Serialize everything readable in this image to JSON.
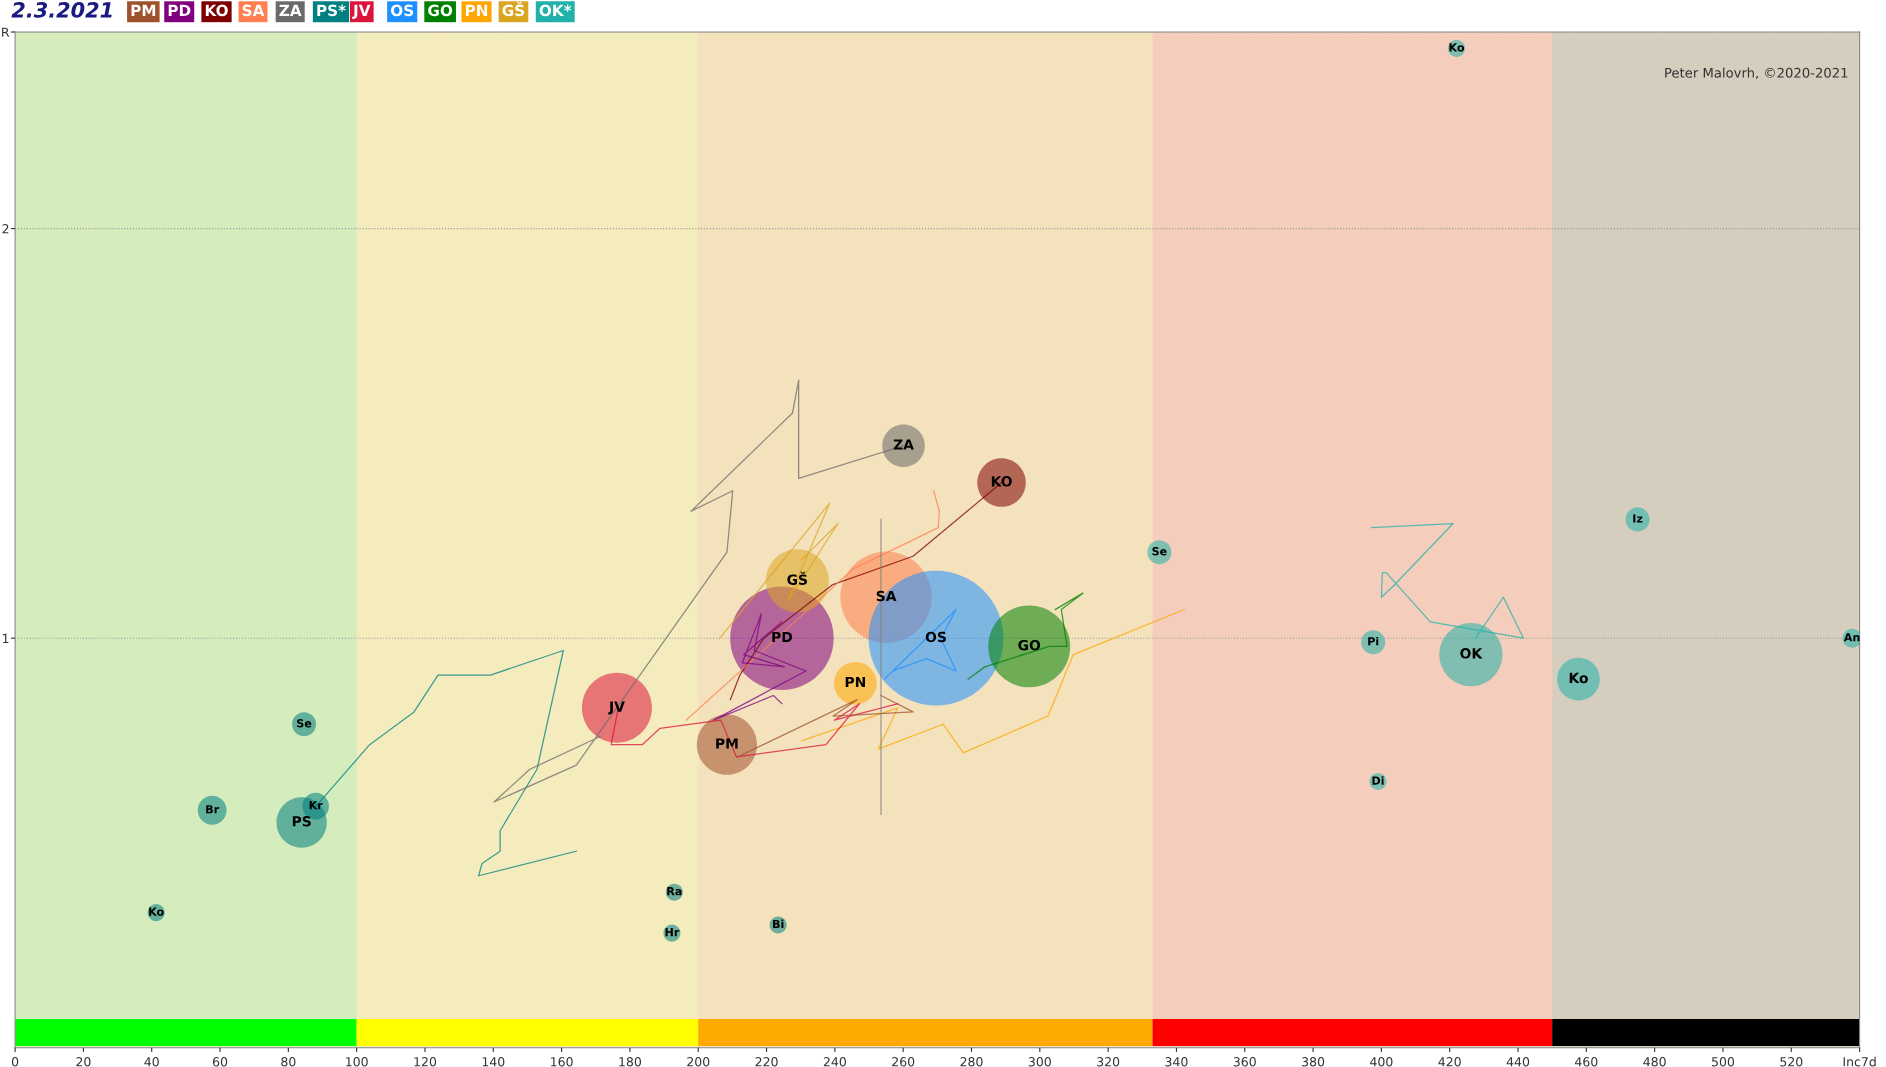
{
  "chart_data": {
    "type": "bubble",
    "title": "2.3.2021",
    "xlim": [
      0,
      540
    ],
    "ylim": [
      0,
      2.48
    ],
    "xticks": [
      0,
      20,
      40,
      60,
      80,
      100,
      120,
      140,
      160,
      180,
      200,
      220,
      240,
      260,
      280,
      300,
      320,
      340,
      360,
      380,
      400,
      420,
      440,
      460,
      480,
      500,
      520,
      {
        "value": 540,
        "label": "Inc7d"
      }
    ],
    "yticks": [
      1,
      2,
      {
        "value": 2.48,
        "label": "R"
      }
    ],
    "grid": "y",
    "legend": "top left",
    "line_style": "solid",
    "annotations": [
      "Peter Malovrh, ©2020-2021"
    ],
    "bands": [
      {
        "axis": "x",
        "from": 0,
        "to": 100,
        "color": "#00ff00"
      },
      {
        "axis": "x",
        "from": 100,
        "to": 200,
        "color": "#ffff00"
      },
      {
        "axis": "x",
        "from": 200,
        "to": 333,
        "color": "#ffaa00"
      },
      {
        "axis": "x",
        "from": 333,
        "to": 450,
        "color": "#ff0000"
      },
      {
        "axis": "x",
        "from": 450,
        "to": 540,
        "color": "#000000"
      }
    ],
    "series": [
      {
        "type": "line",
        "color": "#008080",
        "x": [
          164.3,
          135.7,
          136.7,
          142,
          142,
          152.8,
          160.5,
          139.2,
          123.8,
          116.8,
          103.8,
          88.1
        ],
        "values": [
          0.48,
          0.42,
          0.45,
          0.48,
          0.53,
          0.68,
          0.97,
          0.91,
          0.91,
          0.82,
          0.74,
          0.59
        ]
      },
      {
        "type": "line",
        "color": "#696969",
        "x": [
          260.1,
          229.4,
          229.4,
          227.6,
          197.9,
          210.1,
          208.4,
          164.3,
          140.2,
          150.7,
          171.3
        ],
        "values": [
          1.47,
          1.39,
          1.63,
          1.55,
          1.31,
          1.36,
          1.21,
          0.69,
          0.6,
          0.68,
          0.76
        ]
      },
      {
        "type": "line",
        "color": "#800000",
        "x": [
          288.8,
          262.9,
          239.2,
          219.2,
          212.2,
          209.4
        ],
        "values": [
          1.38,
          1.2,
          1.13,
          1.0,
          0.91,
          0.85
        ]
      },
      {
        "type": "line",
        "color": "#008000",
        "x": [
          279,
          283.9,
          302.8,
          308,
          306.3,
          312.6,
          304.5
        ],
        "values": [
          0.9,
          0.93,
          0.98,
          0.98,
          1.07,
          1.11,
          1.07
        ]
      },
      {
        "type": "line",
        "color": "#ffa500",
        "x": [
          342.3,
          309.8,
          302.4,
          277.6,
          271.7,
          252.8,
          258.4,
          230.4
        ],
        "values": [
          1.07,
          0.96,
          0.81,
          0.72,
          0.79,
          0.73,
          0.83,
          0.75
        ]
      },
      {
        "type": "line",
        "color": "#1e90ff",
        "x": [
          254.5,
          275.5,
          271,
          275.5,
          266.8,
          257
        ],
        "values": [
          0.9,
          1.07,
          1.0,
          0.92,
          0.95,
          0.92
        ]
      },
      {
        "type": "line",
        "color": "#ff7f50",
        "x": [
          268.9,
          270.6,
          270.3,
          245.5,
          196.5
        ],
        "values": [
          1.36,
          1.31,
          1.27,
          1.17,
          0.8
        ]
      },
      {
        "type": "line",
        "color": "#daa520",
        "x": [
          230.1,
          240.9,
          226.2,
          238.5,
          206.3
        ],
        "values": [
          1.19,
          1.28,
          1.09,
          1.33,
          1.0
        ]
      },
      {
        "type": "line",
        "color": "#dc143c",
        "x": [
          176.6,
          174.5,
          183.6,
          188.8,
          206.6,
          211.2,
          237.4,
          247.2,
          239.9,
          258.4
        ],
        "values": [
          0.83,
          0.74,
          0.74,
          0.78,
          0.8,
          0.71,
          0.74,
          0.84,
          0.8,
          0.84
        ]
      },
      {
        "type": "line",
        "color": "#800080",
        "x": [
          224.5,
          213.3,
          225.2,
          212.9,
          218.5,
          216.4,
          231.5,
          204.5,
          222,
          224.5
        ],
        "values": [
          1.04,
          0.96,
          0.93,
          0.94,
          1.06,
          0.97,
          0.92,
          0.8,
          0.86,
          0.84
        ]
      },
      {
        "type": "line",
        "color": "#a0522d",
        "x": [
          211.5,
          246.5,
          239.5,
          262.9,
          253.5
        ],
        "values": [
          0.71,
          0.85,
          0.81,
          0.82,
          0.86
        ]
      },
      {
        "type": "line",
        "color": "#20b2aa",
        "x": [
          397.2,
          421,
          403.8,
          400,
          400.3,
          401.4,
          414.3,
          441.6,
          435.7,
          427.6
        ],
        "values": [
          1.27,
          1.28,
          1.13,
          1.1,
          1.16,
          1.16,
          1.04,
          1.0,
          1.1,
          1.0
        ]
      },
      {
        "type": "line",
        "color": "#808080",
        "x": [
          253.5,
          253.5
        ],
        "values": [
          1.29,
          0.57
        ]
      },
      {
        "name": "PM",
        "color": "#a0522d",
        "x": [
          208.4
        ],
        "values": [
          0.74
        ],
        "sizes": [
          0.2
        ],
        "value_labels": [
          "PM"
        ]
      },
      {
        "name": "PD",
        "color": "#800080",
        "x": [
          224.5
        ],
        "values": [
          1.0
        ],
        "sizes": [
          0.59
        ],
        "value_labels": [
          "PD"
        ]
      },
      {
        "name": "KO",
        "color": "#800000",
        "x": [
          288.8
        ],
        "values": [
          1.38
        ],
        "sizes": [
          0.13
        ],
        "value_labels": [
          "KO"
        ]
      },
      {
        "name": "SA",
        "color": "#ff7f50",
        "x": [
          255
        ],
        "values": [
          1.1
        ],
        "sizes": [
          0.46
        ],
        "value_labels": [
          "SA"
        ]
      },
      {
        "name": "ZA",
        "color": "#696969",
        "x": [
          260.1
        ],
        "values": [
          1.47
        ],
        "sizes": [
          0.1
        ],
        "value_labels": [
          "ZA"
        ]
      },
      {
        "name": "PS*",
        "color": "#008080",
        "x": [
          83.9
        ],
        "values": [
          0.55
        ],
        "sizes": [
          0.14
        ],
        "value_labels": [
          "PS"
        ]
      },
      {
        "name": "JV",
        "color": "#dc143c",
        "x": [
          176.2
        ],
        "values": [
          0.83
        ],
        "sizes": [
          0.27
        ],
        "value_labels": [
          "JV"
        ]
      },
      {
        "name": "OS",
        "color": "#1e90ff",
        "x": [
          269.6
        ],
        "values": [
          1.0
        ],
        "sizes": [
          1
        ],
        "value_labels": [
          "OS"
        ]
      },
      {
        "name": "GO",
        "color": "#008000",
        "x": [
          296.9
        ],
        "values": [
          0.98
        ],
        "sizes": [
          0.37
        ],
        "value_labels": [
          "GO"
        ]
      },
      {
        "name": "PN",
        "color": "#ffa500",
        "x": [
          246
        ],
        "values": [
          0.89
        ],
        "sizes": [
          0.1
        ],
        "value_labels": [
          "PN"
        ]
      },
      {
        "name": "GŠ",
        "color": "#daa520",
        "x": [
          229
        ],
        "values": [
          1.14
        ],
        "sizes": [
          0.22
        ],
        "value_labels": [
          "GŠ"
        ]
      },
      {
        "name": "OK*",
        "color": "#20b2aa",
        "x": [
          426.2
        ],
        "values": [
          0.96
        ],
        "sizes": [
          0.22
        ],
        "value_labels": [
          "OK"
        ]
      },
      {
        "color": "#008080",
        "x": [
          88,
          57.7,
          84.6,
          41.3,
          193,
          192.3,
          223.4
        ],
        "values": [
          0.59,
          0.58,
          0.79,
          0.33,
          0.38,
          0.28,
          0.3
        ],
        "sizes": [
          0.039,
          0.046,
          0.032,
          0.016,
          0.016,
          0.016,
          0.016
        ],
        "value_labels": [
          "Kr",
          "Br",
          "Se",
          "Ko",
          "Ra",
          "Hr",
          "Bi"
        ]
      },
      {
        "color": "#20b2aa",
        "x": [
          335,
          397.6,
          399,
          457.7,
          475,
          537.8,
          422
        ],
        "values": [
          1.21,
          0.99,
          0.65,
          0.9,
          1.29,
          1.0,
          2.44
        ],
        "sizes": [
          0.032,
          0.032,
          0.016,
          0.1,
          0.032,
          0.02,
          0.016
        ],
        "value_labels": [
          "Se",
          "Pi",
          "Di",
          "Ko",
          "Iz",
          "An",
          "Ko"
        ]
      }
    ]
  }
}
